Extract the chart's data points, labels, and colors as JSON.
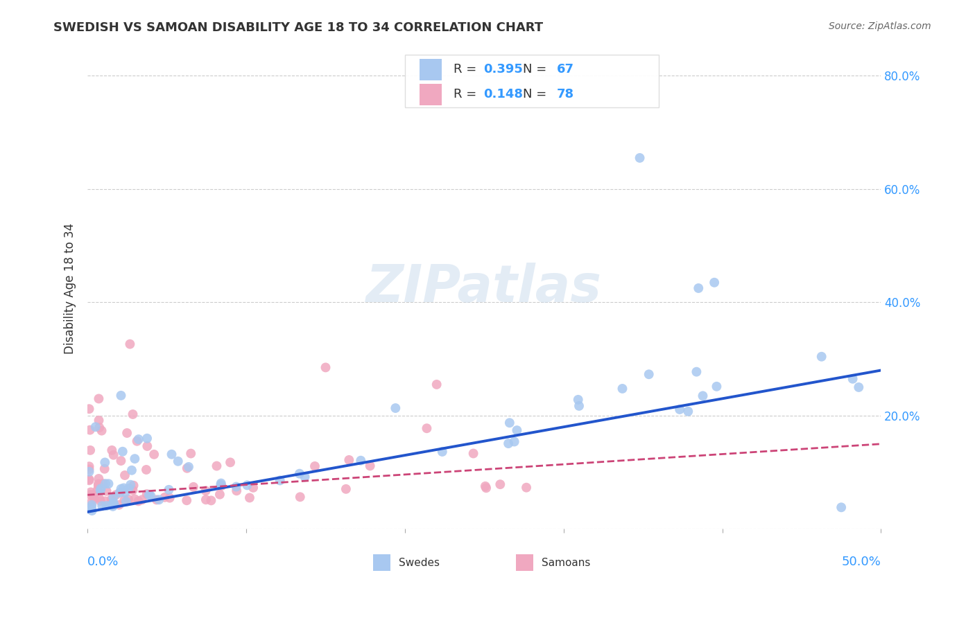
{
  "title": "SWEDISH VS SAMOAN DISABILITY AGE 18 TO 34 CORRELATION CHART",
  "source": "Source: ZipAtlas.com",
  "ylabel": "Disability Age 18 to 34",
  "xlim": [
    0.0,
    0.5
  ],
  "ylim": [
    0.0,
    0.85
  ],
  "yticks": [
    0.0,
    0.2,
    0.4,
    0.6,
    0.8
  ],
  "grid_color": "#cccccc",
  "background_color": "#ffffff",
  "watermark": "ZIPatlas",
  "swedish_color": "#a8c8f0",
  "samoan_color": "#f0a8c0",
  "swedish_line_color": "#2255cc",
  "samoan_line_color": "#cc4477",
  "legend_R_swedish": "0.395",
  "legend_N_swedish": "67",
  "legend_R_samoan": "0.148",
  "legend_N_samoan": "78",
  "accent_blue": "#3399ff",
  "text_color": "#333333",
  "source_color": "#666666"
}
